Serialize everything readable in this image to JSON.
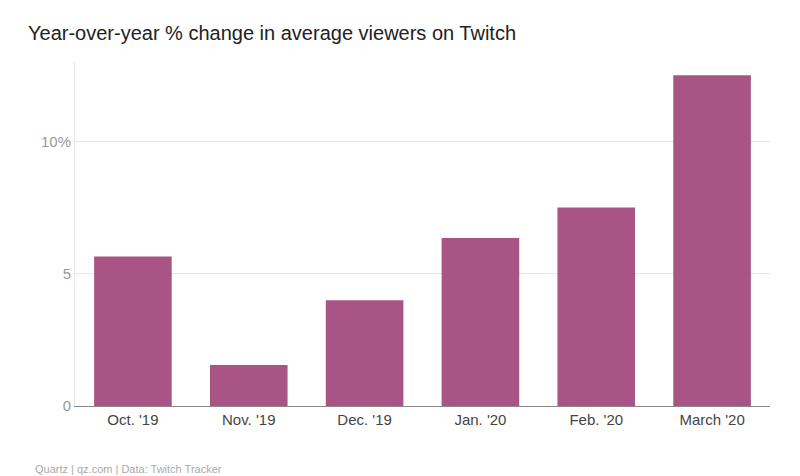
{
  "chart_data": {
    "type": "bar",
    "title": "Year-over-year % change in average viewers on Twitch",
    "source": "Quartz | qz.com | Data: Twitch Tracker",
    "categories": [
      "Oct. '19",
      "Nov. '19",
      "Dec. '19",
      "Jan. '20",
      "Feb. '20",
      "March '20"
    ],
    "values": [
      5.65,
      1.55,
      4.0,
      6.35,
      7.5,
      12.5
    ],
    "color": "#a85585",
    "ylim": [
      0,
      13
    ],
    "yticks": [
      0,
      5,
      {
        "value": 10,
        "label": "10%"
      }
    ],
    "grid": true
  }
}
